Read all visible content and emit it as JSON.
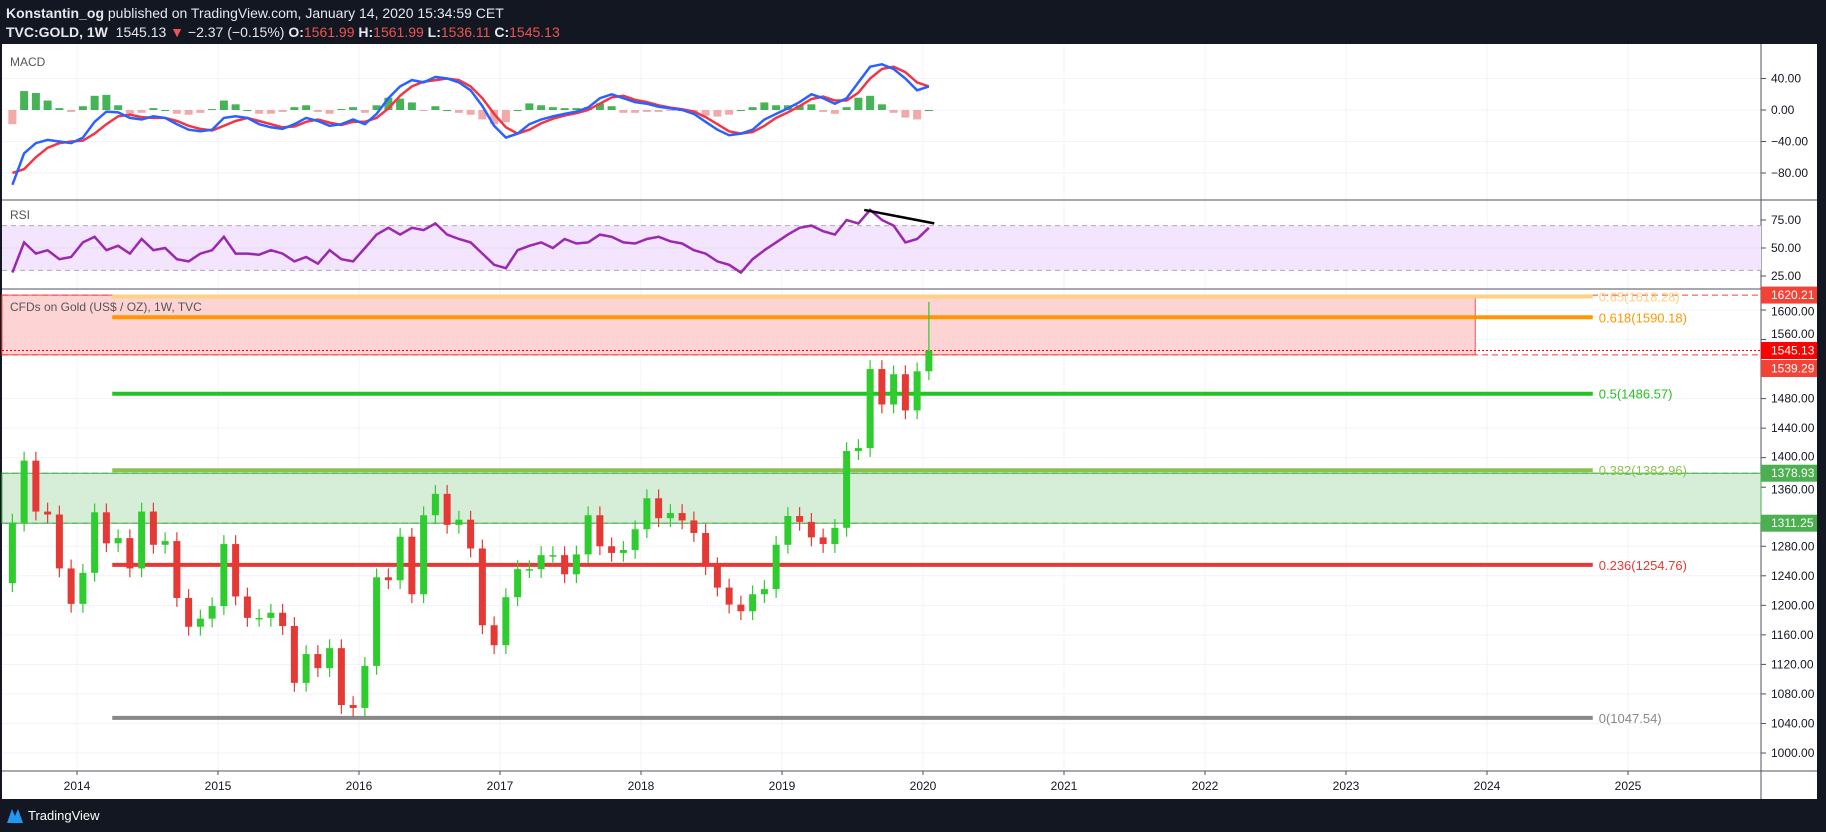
{
  "header": {
    "author": "Konstantin_og",
    "published": "published on TradingView.com, January 14, 2020 15:34:59 CET",
    "symbol": "TVC:GOLD, 1W",
    "last": "1545.13",
    "change": "−2.37 (−0.15%)",
    "o_label": "O:",
    "o": "1561.99",
    "h_label": "H:",
    "h": "1561.99",
    "l_label": "L:",
    "l": "1536.11",
    "c_label": "C:",
    "c": "1545.13"
  },
  "footer": {
    "brand": "TradingView"
  },
  "colors": {
    "up": "#2ecc2e",
    "down": "#e53935",
    "macd": "#2962ff",
    "signal": "#f23645",
    "rsi": "#9c27b0",
    "rsi_band": "#f3e5fd",
    "zone_red": "#fdd3d3",
    "zone_green": "#d6eed8"
  },
  "chart_data": [
    {
      "type": "line",
      "title": "MACD",
      "yticks": [
        40,
        0,
        -40,
        -80
      ],
      "start_month": "2013-07",
      "macd": [
        -95,
        -55,
        -42,
        -38,
        -40,
        -42,
        -35,
        -15,
        -2,
        -3,
        -10,
        -12,
        -8,
        -10,
        -18,
        -25,
        -27,
        -25,
        -10,
        -8,
        -10,
        -18,
        -22,
        -24,
        -18,
        -10,
        -14,
        -20,
        -18,
        -12,
        -18,
        -5,
        15,
        30,
        38,
        35,
        42,
        40,
        35,
        25,
        5,
        -20,
        -35,
        -30,
        -18,
        -12,
        -8,
        -5,
        -2,
        3,
        15,
        20,
        15,
        10,
        8,
        4,
        2,
        0,
        -5,
        -15,
        -25,
        -32,
        -30,
        -25,
        -12,
        -5,
        2,
        10,
        20,
        15,
        8,
        15,
        35,
        55,
        58,
        52,
        40,
        25,
        30
      ],
      "signal": [
        -80,
        -75,
        -60,
        -48,
        -42,
        -40,
        -39,
        -30,
        -18,
        -8,
        -6,
        -9,
        -10,
        -10,
        -14,
        -20,
        -24,
        -26,
        -20,
        -14,
        -10,
        -14,
        -18,
        -22,
        -21,
        -15,
        -12,
        -16,
        -19,
        -15,
        -15,
        -10,
        2,
        18,
        30,
        36,
        38,
        40,
        38,
        30,
        15,
        -5,
        -22,
        -30,
        -25,
        -17,
        -11,
        -7,
        -4,
        0,
        8,
        16,
        18,
        13,
        10,
        6,
        3,
        1,
        -2,
        -9,
        -18,
        -27,
        -30,
        -28,
        -20,
        -10,
        -3,
        5,
        14,
        17,
        12,
        12,
        22,
        40,
        52,
        55,
        48,
        35,
        30
      ]
    },
    {
      "type": "line",
      "title": "RSI",
      "yticks": [
        75,
        50,
        25
      ],
      "band": [
        30,
        70
      ],
      "start_month": "2013-07",
      "rsi": [
        28,
        55,
        45,
        48,
        40,
        42,
        55,
        60,
        48,
        52,
        45,
        58,
        48,
        50,
        40,
        38,
        45,
        48,
        60,
        45,
        45,
        44,
        48,
        45,
        38,
        42,
        36,
        48,
        40,
        38,
        50,
        62,
        68,
        62,
        68,
        66,
        72,
        62,
        58,
        55,
        45,
        35,
        32,
        48,
        52,
        55,
        50,
        58,
        54,
        55,
        62,
        60,
        55,
        54,
        58,
        60,
        56,
        54,
        48,
        45,
        38,
        35,
        28,
        40,
        48,
        55,
        62,
        68,
        70,
        65,
        62,
        75,
        72,
        84,
        75,
        70,
        55,
        58,
        68
      ],
      "trendline": [
        {
          "x": "2019-08",
          "y": 84
        },
        {
          "x": "2020-01",
          "y": 72
        }
      ]
    },
    {
      "type": "candlestick",
      "title": "CFDs on Gold (US$ / OZ), 1W, TVC",
      "start_month": "2013-07",
      "close": [
        1312,
        1396,
        1327,
        1323,
        1250,
        1202,
        1244,
        1326,
        1284,
        1291,
        1250,
        1327,
        1282,
        1287,
        1210,
        1171,
        1182,
        1199,
        1283,
        1212,
        1183,
        1183,
        1190,
        1172,
        1095,
        1134,
        1115,
        1142,
        1065,
        1061,
        1118,
        1238,
        1234,
        1293,
        1215,
        1322,
        1351,
        1309,
        1316,
        1277,
        1173,
        1146,
        1211,
        1249,
        1249,
        1268,
        1268,
        1242,
        1269,
        1322,
        1280,
        1271,
        1275,
        1303,
        1345,
        1318,
        1325,
        1315,
        1298,
        1253,
        1224,
        1201,
        1192,
        1215,
        1222,
        1282,
        1321,
        1313,
        1292,
        1283,
        1305,
        1409,
        1413,
        1520,
        1472,
        1513,
        1464,
        1517,
        1545
      ],
      "first_open": 1230,
      "last_high": 1611,
      "yticks": [
        1600,
        1560,
        1480,
        1440,
        1400,
        1360,
        1280,
        1240,
        1200,
        1160,
        1120,
        1080,
        1040,
        1000
      ],
      "xticks": [
        "2014",
        "2015",
        "2016",
        "2017",
        "2018",
        "2019",
        "2020",
        "2021",
        "2022",
        "2023",
        "2024",
        "2025"
      ],
      "fib": {
        "start": "2014-04",
        "end": "2024-10",
        "levels": [
          {
            "label": "0.65(1618.28)",
            "value": 1618.28,
            "color": "#ffd180"
          },
          {
            "label": "0.618(1590.18)",
            "value": 1590.18,
            "color": "#ff9800"
          },
          {
            "label": "0.5(1486.57)",
            "value": 1486.57,
            "color": "#22c322"
          },
          {
            "label": "0.382(1382.96)",
            "value": 1382.96,
            "color": "#8bc34a"
          },
          {
            "label": "0.236(1254.76)",
            "value": 1254.76,
            "color": "#e53935"
          },
          {
            "label": "0(1047.54)",
            "value": 1047.54,
            "color": "#888888"
          }
        ]
      },
      "zones": [
        {
          "top": 1620.21,
          "bottom": 1539.29,
          "end": "2023-12",
          "color": "red"
        },
        {
          "top": 1378.93,
          "bottom": 1311.25,
          "color": "green"
        }
      ],
      "price_labels": [
        {
          "text": "1620.21",
          "value": 1620.21,
          "color": "#f44336"
        },
        {
          "text": "1545.13",
          "value": 1545.13,
          "color": "#ff0000"
        },
        {
          "text": "1539.29",
          "value": 1539.29,
          "color": "#f44336"
        },
        {
          "text": "1378.93",
          "value": 1378.93,
          "color": "#4caf50"
        },
        {
          "text": "1311.25",
          "value": 1311.25,
          "color": "#4caf50"
        }
      ]
    }
  ]
}
